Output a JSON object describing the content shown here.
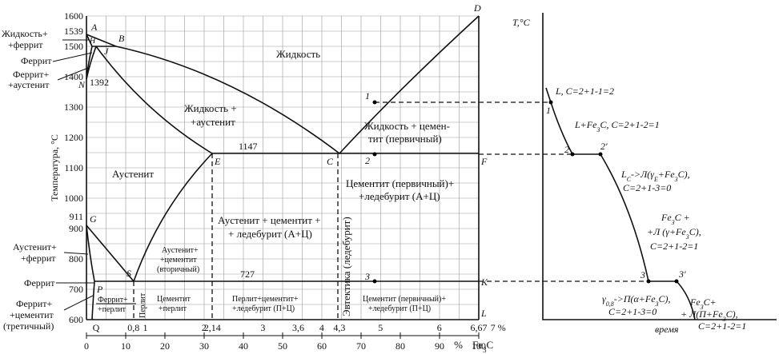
{
  "y_axis": {
    "title": "Температура, °С",
    "ticks": [
      "1600",
      "1500",
      "1400",
      "1300",
      "1200",
      "1100",
      "1000",
      "900",
      "800",
      "700",
      "600"
    ],
    "special": [
      "1539",
      "911"
    ]
  },
  "isotherms": [
    "1392",
    "1147",
    "727"
  ],
  "x_carbon": [
    "Q",
    "0,8",
    "1",
    "2",
    "2,14",
    "3",
    "3,6",
    "4",
    "4,3",
    "5",
    "6",
    "6,67",
    "7 %"
  ],
  "x_cementite": {
    "ticks": [
      "0",
      "10",
      "20",
      "30",
      "40",
      "50",
      "60",
      "70",
      "80",
      "90",
      "100"
    ],
    "unit": "%",
    "label": [
      "Fe",
      "3",
      "C"
    ]
  },
  "points": [
    "A",
    "B",
    "H",
    "J",
    "N",
    "C",
    "D",
    "E",
    "F",
    "G",
    "S",
    "P",
    "K",
    "L",
    "1",
    "2",
    "3"
  ],
  "regions": [
    "Жидкость",
    "Жидкость +",
    "+аустенит",
    "Жидкость + цемен-",
    "тит (первичный)",
    "Аустенит",
    "Цементит (первичный)+",
    "+ледебурит (А+Ц)",
    "Аустенит + цементит +",
    "+ ледебурит (А+Ц)",
    "Аустенит+",
    "+цементит",
    "(вторичный)",
    "Эвтектика (ледебурит)",
    "Феррит+",
    "+перлит",
    "Перлит",
    "Цементит",
    "+перлит",
    "Перлит+цементит+",
    "+ледебурит (П+Ц)",
    "Цементит (первичный)+",
    "+ледебурит (П+Ц)"
  ],
  "side_labels": [
    "Жидкость+",
    "+феррит",
    "Феррит",
    "Феррит+",
    "+аустенит",
    "Аустенит+",
    "+феррит",
    "Феррит",
    "Феррит+",
    "+цементит",
    "(третичный)"
  ],
  "cooling": {
    "axis_y": "T,°C",
    "axis_x": "время",
    "points": [
      "1",
      "2",
      "2′",
      "3",
      "3′"
    ],
    "notes": [
      [
        [
          "L, C=2+1-1=2"
        ]
      ],
      [
        [
          "L+Fe",
          "3",
          "C, C=2+1-2=1"
        ]
      ],
      [
        [
          "L",
          "C",
          "->Л(γ",
          "E",
          "+Fe",
          "3",
          "C),"
        ],
        [
          "C=2+1-3=0"
        ]
      ],
      [
        [
          "Fe",
          "3",
          "C +"
        ],
        [
          "+Л (γ+Fe",
          "3",
          "C),"
        ],
        [
          "C=2+1-2=1"
        ]
      ],
      [
        [
          "Fe",
          "3",
          "C+"
        ],
        [
          "+ Л(П+Fe",
          "3",
          "C),"
        ],
        [
          "C=2+1-2=1"
        ]
      ],
      [
        [
          "γ",
          "0,8",
          "->П(α+Fe",
          "3",
          "C),"
        ],
        [
          "C=2+1-3=0"
        ]
      ]
    ]
  }
}
